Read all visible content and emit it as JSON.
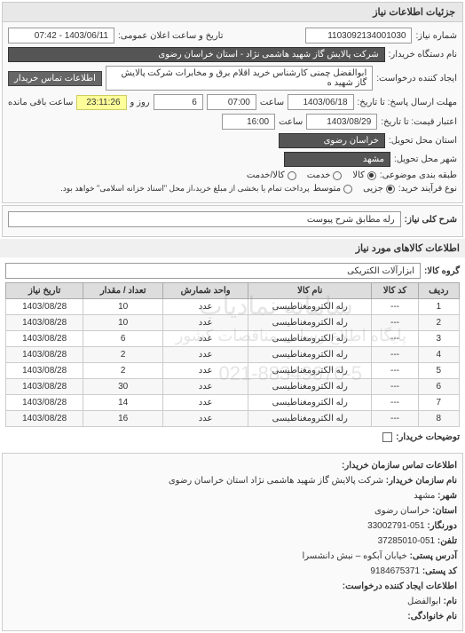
{
  "panel": {
    "title": "جزئیات اطلاعات نیاز"
  },
  "header": {
    "need_no_label": "شماره نیاز:",
    "need_no": "1103092134001030",
    "announce_label": "تاریخ و ساعت اعلان عمومی:",
    "announce": "1403/06/11 - 07:42",
    "buyer_org_label": "نام دستگاه خریدار:",
    "buyer_org": "شرکت پالایش گاز شهید هاشمی نژاد - استان خراسان رضوی",
    "requester_label": "ایجاد کننده درخواست:",
    "requester": "ابوالفضل چمنی کارشناس خرید اقلام برق و مخابرات شرکت پالایش گاز شهید ه",
    "contact_btn": "اطلاعات تماس خریدار",
    "deadline_send_label": "مهلت ارسال پاسخ: تا تاریخ:",
    "deadline_send_date": "1403/06/18",
    "deadline_send_time_label": "ساعت",
    "deadline_send_time": "07:00",
    "remaining_days": "6",
    "remaining_days_label": "روز و",
    "remaining_time": "23:11:26",
    "remaining_suffix": "ساعت باقی مانده",
    "validity_label": "اعتبار قیمت: تا تاریخ:",
    "validity_date": "1403/08/29",
    "validity_time_label": "ساعت",
    "validity_time": "16:00",
    "province_label": "استان محل تحویل:",
    "province": "خراسان رضوی",
    "city_label": "شهر محل تحویل:",
    "city": "مشهد",
    "category_label": "طبقه بندی موضوعی:",
    "cat_goods": "کالا",
    "cat_service": "خدمت",
    "cat_goods_service": "کالا/خدمت",
    "process_label": "نوع فرآیند خرید:",
    "proc_small": "جزیی",
    "proc_medium": "متوسط",
    "proc_note": "پرداخت تمام یا بخشی از مبلغ خرید،از محل \"اسناد خزانه اسلامی\" خواهد بود."
  },
  "need": {
    "overall_label": "شرح کلی نیاز:",
    "overall": "رله مطابق شرح پیوست"
  },
  "goods": {
    "section_title": "اطلاعات کالاهای مورد نیاز",
    "group_label": "گروه کالا:",
    "group": "ابزارآلات الکتریکی",
    "columns": [
      "ردیف",
      "کد کالا",
      "نام کالا",
      "واحد شمارش",
      "تعداد / مقدار",
      "تاریخ نیاز"
    ],
    "rows": [
      [
        "1",
        "---",
        "رله الکترومغناطیسی",
        "عدد",
        "10",
        "1403/08/28"
      ],
      [
        "2",
        "---",
        "رله الکترومغناطیسی",
        "عدد",
        "10",
        "1403/08/28"
      ],
      [
        "3",
        "---",
        "رله الکترومغناطیسی",
        "عدد",
        "6",
        "1403/08/28"
      ],
      [
        "4",
        "---",
        "رله الکترومغناطیسی",
        "عدد",
        "2",
        "1403/08/28"
      ],
      [
        "5",
        "---",
        "رله الکترومغناطیسی",
        "عدد",
        "2",
        "1403/08/28"
      ],
      [
        "6",
        "---",
        "رله الکترومغناطیسی",
        "عدد",
        "30",
        "1403/08/28"
      ],
      [
        "7",
        "---",
        "رله الکترومغناطیسی",
        "عدد",
        "14",
        "1403/08/28"
      ],
      [
        "8",
        "---",
        "رله الکترومغناطیسی",
        "عدد",
        "16",
        "1403/08/28"
      ]
    ],
    "watermark1": "سامانه نمادیاب",
    "watermark2": "پایگاه اطلاع رسانی مناقصات کشور",
    "watermark3": "021-88349670-5",
    "buyer_notes_label": "توضیحات خریدار:"
  },
  "contact": {
    "title": "اطلاعات تماس سازمان خریدار:",
    "org_label": "نام سازمان خریدار:",
    "org": "شرکت پالایش گاز شهید هاشمی نژاد استان خراسان رضوی",
    "city_label": "شهر:",
    "city": "مشهد",
    "province_label": "استان:",
    "province": "خراسان رضوی",
    "fax_label": "دورنگار:",
    "fax": "051-33002791",
    "tel_label": "تلفن:",
    "tel": "051-37285010",
    "address_label": "آدرس پستی:",
    "address": "خیابان آبکوه – نبش دانشسرا",
    "postcode_label": "کد پستی:",
    "postcode": "9184675371",
    "creator_title": "اطلاعات ایجاد کننده درخواست:",
    "name_label": "نام:",
    "name": "ابوالفضل",
    "surname_label": "نام خانوادگی:"
  }
}
